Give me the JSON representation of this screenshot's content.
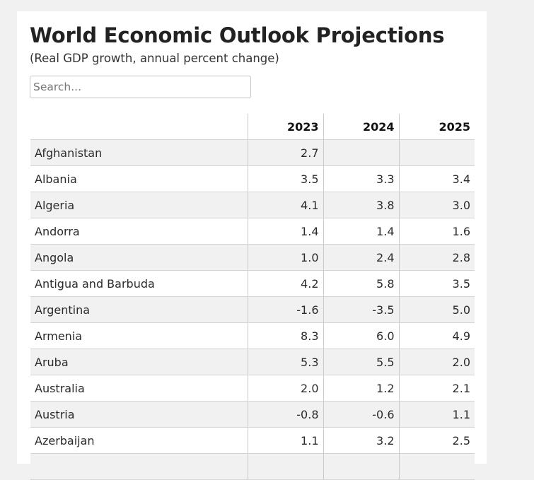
{
  "header": {
    "title": "World Economic Outlook Projections",
    "subtitle": "(Real GDP growth, annual percent change)"
  },
  "search": {
    "placeholder": "Search..."
  },
  "table": {
    "columns": [
      "",
      "2023",
      "2024",
      "2025"
    ],
    "rows": [
      {
        "country": "Afghanistan",
        "y2023": "2.7",
        "y2024": "",
        "y2025": ""
      },
      {
        "country": "Albania",
        "y2023": "3.5",
        "y2024": "3.3",
        "y2025": "3.4"
      },
      {
        "country": "Algeria",
        "y2023": "4.1",
        "y2024": "3.8",
        "y2025": "3.0"
      },
      {
        "country": "Andorra",
        "y2023": "1.4",
        "y2024": "1.4",
        "y2025": "1.6"
      },
      {
        "country": "Angola",
        "y2023": "1.0",
        "y2024": "2.4",
        "y2025": "2.8"
      },
      {
        "country": "Antigua and Barbuda",
        "y2023": "4.2",
        "y2024": "5.8",
        "y2025": "3.5"
      },
      {
        "country": "Argentina",
        "y2023": "-1.6",
        "y2024": "-3.5",
        "y2025": "5.0"
      },
      {
        "country": "Armenia",
        "y2023": "8.3",
        "y2024": "6.0",
        "y2025": "4.9"
      },
      {
        "country": "Aruba",
        "y2023": "5.3",
        "y2024": "5.5",
        "y2025": "2.0"
      },
      {
        "country": "Australia",
        "y2023": "2.0",
        "y2024": "1.2",
        "y2025": "2.1"
      },
      {
        "country": "Austria",
        "y2023": "-0.8",
        "y2024": "-0.6",
        "y2025": "1.1"
      },
      {
        "country": "Azerbaijan",
        "y2023": "1.1",
        "y2024": "3.2",
        "y2025": "2.5"
      },
      {
        "country": "",
        "y2023": "",
        "y2024": "",
        "y2025": ""
      }
    ]
  }
}
